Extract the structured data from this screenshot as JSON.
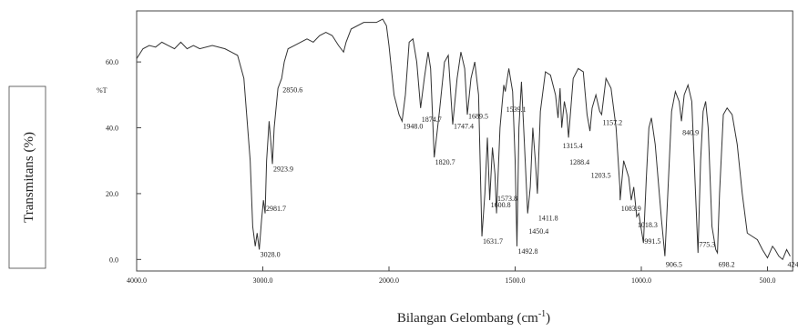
{
  "chart_data": {
    "type": "line",
    "y_label": "Transmitans (%)",
    "x_label": [
      "Bilangan Gelombang (cm",
      "-1",
      ")"
    ],
    "y_unit": "%T",
    "color": "#333333",
    "xlim": [
      4000,
      400
    ],
    "ylim": [
      -3.5,
      75.5
    ],
    "xticks": [
      {
        "value": 4000,
        "label": "4000.0"
      },
      {
        "value": 3000,
        "label": "3000.0"
      },
      {
        "value": 2000,
        "label": "2000.0"
      },
      {
        "value": 1500,
        "label": "1500.0"
      },
      {
        "value": 1000,
        "label": "1000.0"
      },
      {
        "value": 500,
        "label": "500.0"
      }
    ],
    "yticks": [
      {
        "value": 0,
        "label": "0.0"
      },
      {
        "value": 20,
        "label": "20.0"
      },
      {
        "value": 40,
        "label": "40.0"
      },
      {
        "value": 60,
        "label": "60.0"
      }
    ],
    "x": [
      4000,
      3950,
      3900,
      3850,
      3800,
      3750,
      3700,
      3650,
      3600,
      3550,
      3500,
      3400,
      3300,
      3200,
      3150,
      3100,
      3080,
      3060,
      3045,
      3028,
      3010,
      2995,
      2981.7,
      2970,
      2950,
      2935,
      2923.9,
      2910,
      2880,
      2850.6,
      2830,
      2800,
      2750,
      2700,
      2650,
      2600,
      2550,
      2500,
      2450,
      2400,
      2360,
      2340,
      2300,
      2200,
      2100,
      2050,
      2020,
      2000,
      1980,
      1960,
      1948,
      1935,
      1920,
      1905,
      1890,
      1874.7,
      1860,
      1845,
      1835,
      1820.7,
      1800,
      1780,
      1765,
      1747.4,
      1730,
      1715,
      1700,
      1689.5,
      1675,
      1660,
      1645,
      1631.7,
      1620,
      1610,
      1600.8,
      1590,
      1580,
      1573.8,
      1560,
      1545,
      1539.1,
      1525,
      1510,
      1500,
      1492.8,
      1485,
      1475,
      1465,
      1450.4,
      1440,
      1430,
      1420,
      1411.8,
      1400,
      1380,
      1360,
      1340,
      1330,
      1322,
      1315.4,
      1305,
      1295,
      1288.4,
      1270,
      1250,
      1230,
      1215,
      1203.5,
      1195,
      1180,
      1165,
      1157.2,
      1140,
      1120,
      1100,
      1085,
      1083.9,
      1070,
      1050,
      1040,
      1030,
      1018.3,
      1010,
      991.5,
      980,
      970,
      960,
      945,
      920,
      906.5,
      895,
      880,
      865,
      850,
      840.9,
      830,
      815,
      800,
      785,
      775.3,
      765,
      755,
      745,
      735,
      720,
      705,
      698.2,
      690,
      675,
      660,
      640,
      620,
      600,
      580,
      560,
      540,
      520,
      500,
      480,
      470,
      455,
      440,
      424,
      410
    ],
    "values": [
      61,
      64,
      65,
      64.5,
      66,
      65,
      64,
      66,
      64,
      65,
      64,
      65,
      64,
      62,
      55,
      30,
      10,
      4,
      8,
      3,
      12,
      18,
      14,
      30,
      42,
      35,
      29,
      40,
      52,
      55,
      60,
      64,
      65,
      66,
      67,
      66,
      68,
      69,
      68,
      65,
      63,
      66,
      70,
      72,
      72,
      73,
      71,
      65,
      50,
      44,
      42,
      50,
      66,
      67,
      60,
      46,
      55,
      63,
      58,
      31,
      45,
      60,
      62,
      41,
      55,
      63,
      58,
      44,
      55,
      60,
      50,
      7,
      20,
      37,
      18,
      34,
      26,
      14,
      40,
      53,
      51,
      58,
      51,
      30,
      4,
      40,
      54,
      38,
      14,
      22,
      40,
      30,
      20,
      45,
      57,
      56,
      50,
      43,
      52,
      40,
      48,
      44,
      37,
      55,
      58,
      57,
      44,
      39,
      46,
      50,
      45,
      44,
      55,
      52,
      40,
      22,
      18,
      30,
      25,
      18,
      22,
      13,
      14,
      5,
      25,
      40,
      43,
      35,
      12,
      1,
      20,
      45,
      51,
      48,
      42,
      50,
      53,
      48,
      20,
      2,
      30,
      45,
      48,
      40,
      10,
      3,
      2,
      20,
      44,
      46,
      44,
      35,
      20,
      8,
      7,
      6,
      3,
      0.5,
      4,
      3,
      1,
      0,
      3,
      1
    ],
    "peaks": [
      {
        "label": "3028.0",
        "x": 3028,
        "y": 3
      },
      {
        "label": "2981.7",
        "x": 2981.7,
        "y": 17
      },
      {
        "label": "2923.9",
        "x": 2923.9,
        "y": 29
      },
      {
        "label": "2850.6",
        "x": 2850.6,
        "y": 53
      },
      {
        "label": "1948.0",
        "x": 1948,
        "y": 42
      },
      {
        "label": "1874.7",
        "x": 1874.7,
        "y": 44
      },
      {
        "label": "1820.7",
        "x": 1820.7,
        "y": 31
      },
      {
        "label": "1747.4",
        "x": 1747.4,
        "y": 42
      },
      {
        "label": "1689.5",
        "x": 1689.5,
        "y": 45
      },
      {
        "label": "1539.1",
        "x": 1539.1,
        "y": 47
      },
      {
        "label": "1631.7",
        "x": 1631.7,
        "y": 7
      },
      {
        "label": "1600.8",
        "x": 1600.8,
        "y": 18
      },
      {
        "label": "1573.8",
        "x": 1573.8,
        "y": 20
      },
      {
        "label": "1492.8",
        "x": 1492.8,
        "y": 4
      },
      {
        "label": "1450.4",
        "x": 1450.4,
        "y": 10
      },
      {
        "label": "1411.8",
        "x": 1411.8,
        "y": 14
      },
      {
        "label": "1315.4",
        "x": 1315.4,
        "y": 36
      },
      {
        "label": "1288.4",
        "x": 1288.4,
        "y": 31
      },
      {
        "label": "1203.5",
        "x": 1203.5,
        "y": 27
      },
      {
        "label": "1157.2",
        "x": 1157.2,
        "y": 43
      },
      {
        "label": "1083.9",
        "x": 1083.9,
        "y": 17
      },
      {
        "label": "1018.3",
        "x": 1018.3,
        "y": 12
      },
      {
        "label": "991.5",
        "x": 991.5,
        "y": 7
      },
      {
        "label": "906.5",
        "x": 906.5,
        "y": 0
      },
      {
        "label": "840.9",
        "x": 840.9,
        "y": 40
      },
      {
        "label": "775.3",
        "x": 775.3,
        "y": 6
      },
      {
        "label": "698.2",
        "x": 698.2,
        "y": 0
      },
      {
        "label": "424.",
        "x": 424,
        "y": 0
      }
    ]
  }
}
